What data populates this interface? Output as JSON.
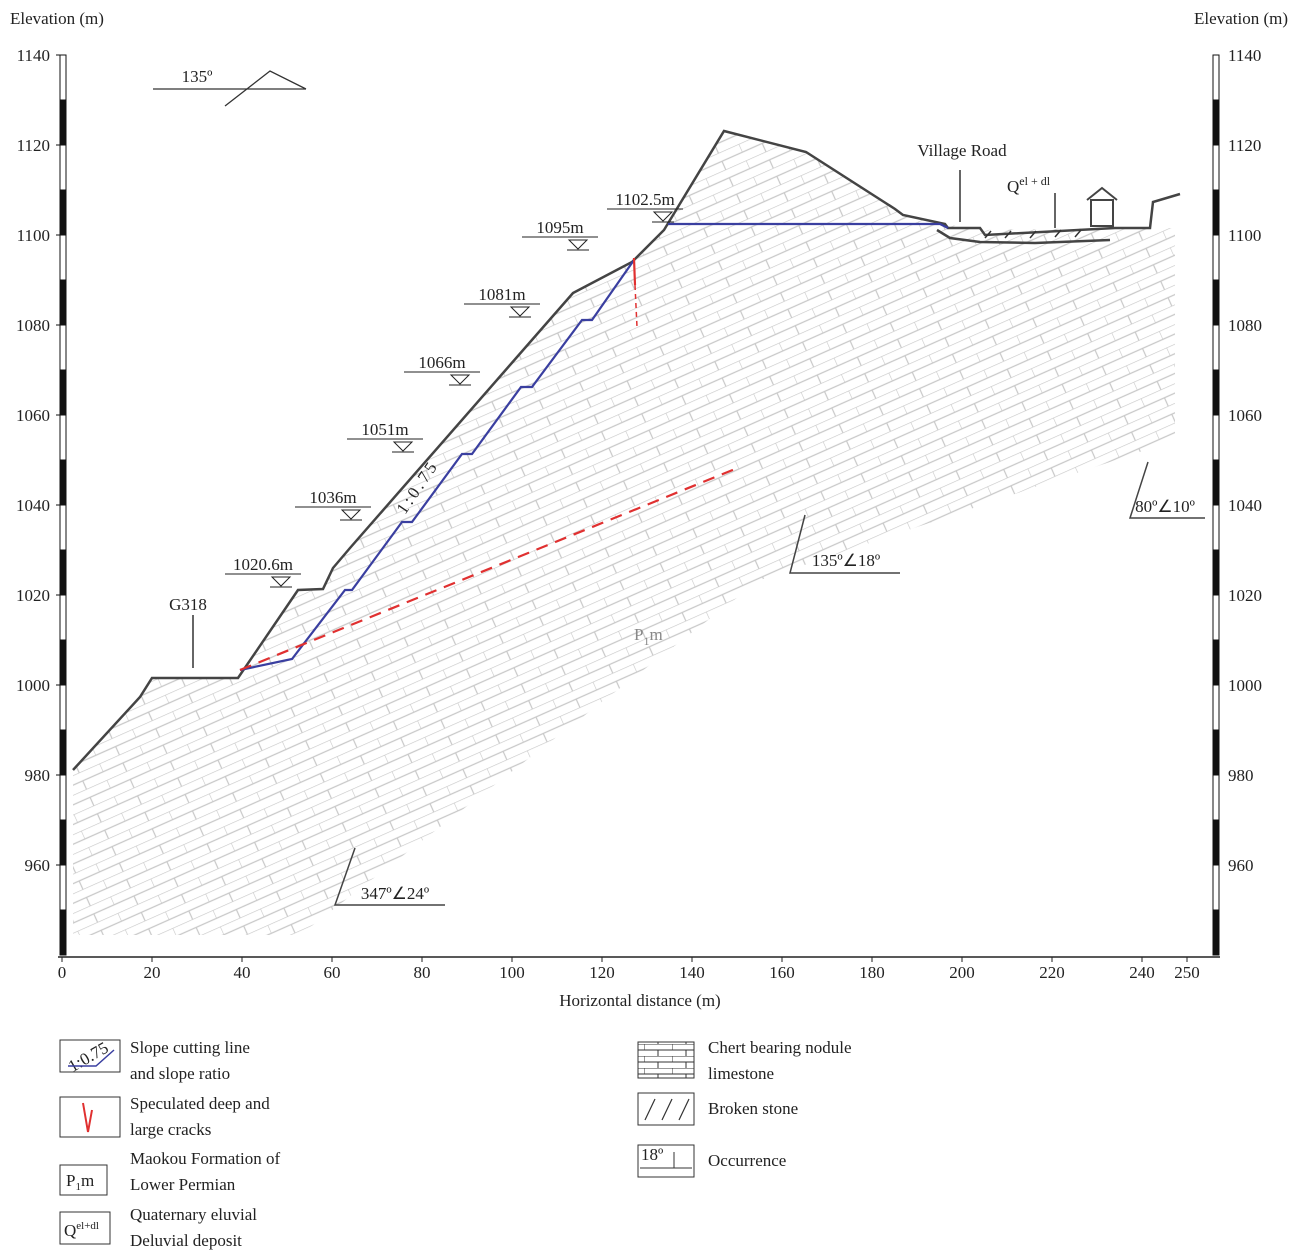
{
  "left_axis": {
    "label": "Elevation (m)",
    "ticks": [
      960,
      980,
      1000,
      1020,
      1040,
      1060,
      1080,
      1100,
      1120,
      1140
    ]
  },
  "right_axis": {
    "label": "Elevation (m)"
  },
  "x_axis": {
    "label": "Horizontal distance (m)",
    "ticks": [
      0,
      20,
      40,
      60,
      80,
      100,
      120,
      140,
      160,
      180,
      200,
      220,
      240,
      250
    ]
  },
  "strike_label": "135º",
  "road_labels": {
    "village": "Village Road",
    "highway": "G318"
  },
  "slope_ratio": "1:0.75",
  "deposit_label": {
    "main": "Q",
    "sup": "el + dl"
  },
  "formation_label": {
    "main": "P",
    "sub": "1",
    "tail": "m"
  },
  "elevation_marks": [
    "1102.5m",
    "1095m",
    "1081m",
    "1066m",
    "1051m",
    "1036m",
    "1020.6m"
  ],
  "occurrences": [
    "347º∠24º",
    "135º∠18º",
    "80º∠10º"
  ],
  "legend": {
    "slope_line": {
      "icon": "1:0.75",
      "lines": [
        "Slope cutting line",
        "and slope ratio"
      ]
    },
    "cracks": {
      "lines": [
        "Speculated deep and",
        "large cracks"
      ]
    },
    "formation": {
      "icon": {
        "main": "P",
        "sub": "1",
        "tail": "m"
      },
      "lines": [
        "Maokou Formation of",
        "Lower Permian"
      ]
    },
    "quaternary": {
      "icon": {
        "main": "Q",
        "sup": "el+dl"
      },
      "lines": [
        "Quaternary eluvial",
        "Deluvial deposit"
      ]
    },
    "limestone": {
      "lines": [
        "Chert bearing nodule",
        "limestone"
      ]
    },
    "broken": {
      "lines": [
        "Broken stone"
      ]
    },
    "occurrence": {
      "icon": "18º",
      "lines": [
        "Occurrence"
      ]
    }
  }
}
